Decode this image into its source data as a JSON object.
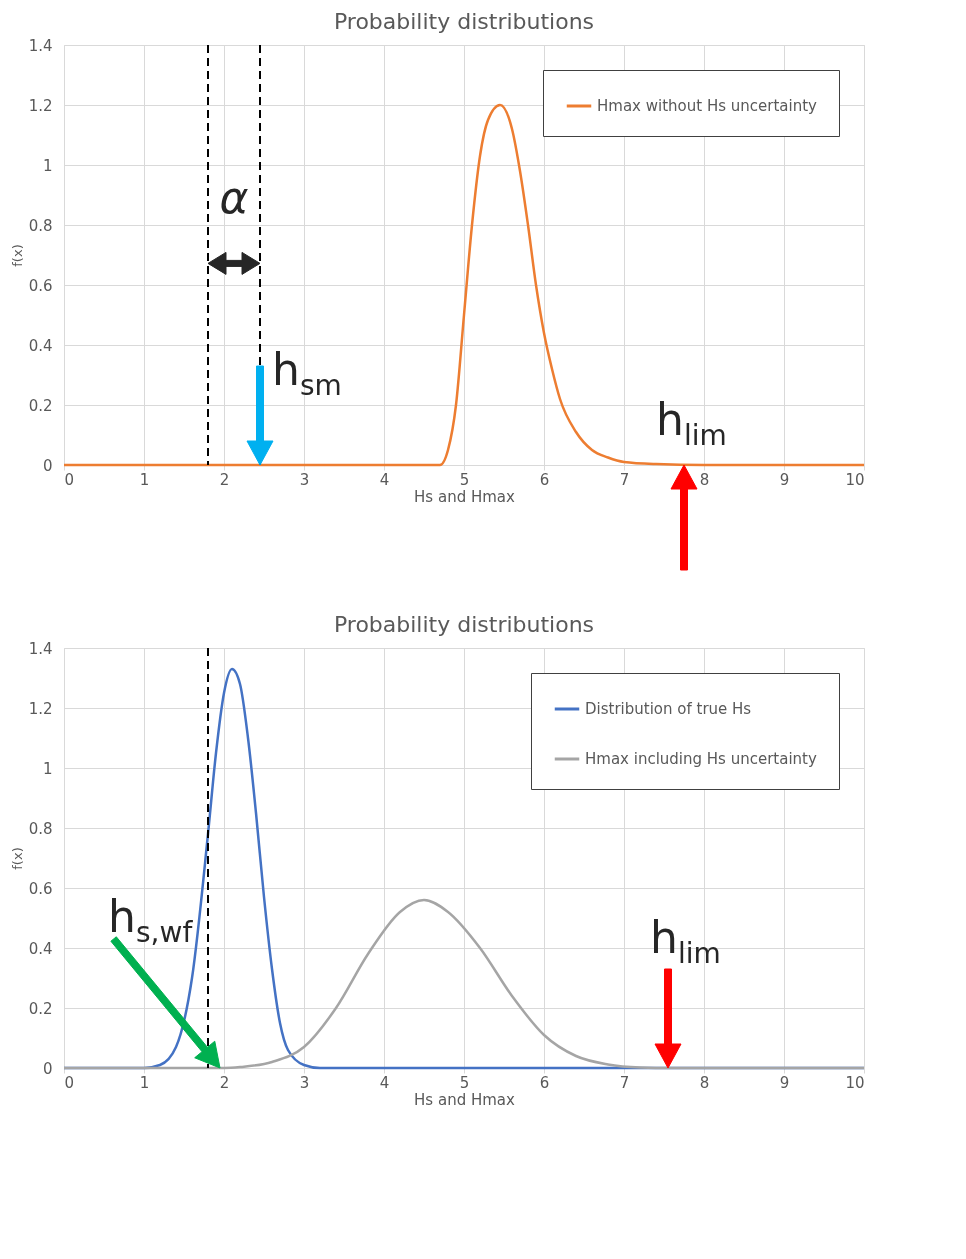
{
  "chart_data": [
    {
      "type": "line",
      "title": "Probability distributions",
      "xlabel": "Hs and Hmax",
      "ylabel": "f(x)",
      "xlim": [
        0,
        10
      ],
      "xticks": [
        0,
        1,
        2,
        3,
        4,
        5,
        6,
        7,
        8,
        9,
        10
      ],
      "ylim": [
        0,
        1.4
      ],
      "yticks": [
        0,
        0.2,
        0.4,
        0.6,
        0.8,
        1,
        1.2,
        1.4
      ],
      "grid": true,
      "legend": "top right",
      "series": [
        {
          "name": "Hmax without Hs uncertainty",
          "color": "#ed7d31",
          "x": [
            0,
            4.7,
            4.8,
            4.9,
            5.0,
            5.1,
            5.2,
            5.3,
            5.45,
            5.6,
            5.7,
            5.8,
            5.9,
            6.0,
            6.1,
            6.2,
            6.4,
            6.6,
            6.8,
            7.0,
            7.4,
            8,
            10
          ],
          "values": [
            0,
            0,
            0.05,
            0.2,
            0.5,
            0.8,
            1.03,
            1.15,
            1.2,
            1.12,
            0.98,
            0.8,
            0.6,
            0.44,
            0.32,
            0.22,
            0.11,
            0.05,
            0.025,
            0.01,
            0.003,
            0,
            0
          ]
        }
      ],
      "ref_lines": [
        {
          "axis": "x",
          "value": 1.8,
          "color": "#000000",
          "line_style": "dashed"
        },
        {
          "axis": "x",
          "value": 2.45,
          "color": "#000000",
          "line_style": "dashed"
        }
      ],
      "annotations": [
        "α",
        {
          "text": "h$_{sm}$",
          "x": 2.45,
          "y": 0
        },
        {
          "text": "h$_{lim}$",
          "x": 7.75,
          "y": 0
        }
      ]
    },
    {
      "type": "line",
      "title": "Probability distributions",
      "xlabel": "Hs and Hmax",
      "ylabel": "f(x)",
      "xlim": [
        0,
        10
      ],
      "xticks": [
        0,
        1,
        2,
        3,
        4,
        5,
        6,
        7,
        8,
        9,
        10
      ],
      "ylim": [
        0,
        1.4
      ],
      "yticks": [
        0,
        0.2,
        0.4,
        0.6,
        0.8,
        1,
        1.2,
        1.4
      ],
      "grid": true,
      "legend": "top right",
      "series": [
        {
          "name": "Distribution of true Hs",
          "color": "#4472c4",
          "x": [
            0,
            1.0,
            1.2,
            1.4,
            1.6,
            1.8,
            1.9,
            2.0,
            2.1,
            2.2,
            2.3,
            2.4,
            2.5,
            2.6,
            2.7,
            2.8,
            3.0,
            3.2,
            10
          ],
          "values": [
            0,
            0,
            0.01,
            0.07,
            0.3,
            0.78,
            1.05,
            1.25,
            1.33,
            1.28,
            1.1,
            0.85,
            0.57,
            0.33,
            0.15,
            0.06,
            0.01,
            0,
            0
          ]
        },
        {
          "name": "Hmax including Hs uncertainty",
          "color": "#a5a5a5",
          "x": [
            0,
            2.0,
            2.2,
            2.6,
            3.0,
            3.4,
            3.8,
            4.2,
            4.5,
            4.8,
            5.2,
            5.6,
            6.0,
            6.4,
            6.8,
            7.2,
            7.6,
            10
          ],
          "values": [
            0,
            0,
            0.003,
            0.02,
            0.07,
            0.2,
            0.38,
            0.52,
            0.56,
            0.52,
            0.4,
            0.24,
            0.11,
            0.04,
            0.012,
            0.002,
            0,
            0
          ]
        }
      ],
      "ref_lines": [
        {
          "axis": "x",
          "value": 1.8,
          "color": "#000000",
          "line_style": "dashed"
        }
      ],
      "annotations": [
        {
          "text": "h$_{s,wf}$",
          "x": 1.95,
          "y": 0
        },
        {
          "text": "h$_{lim}$",
          "x": 7.55,
          "y": 0
        }
      ]
    }
  ]
}
